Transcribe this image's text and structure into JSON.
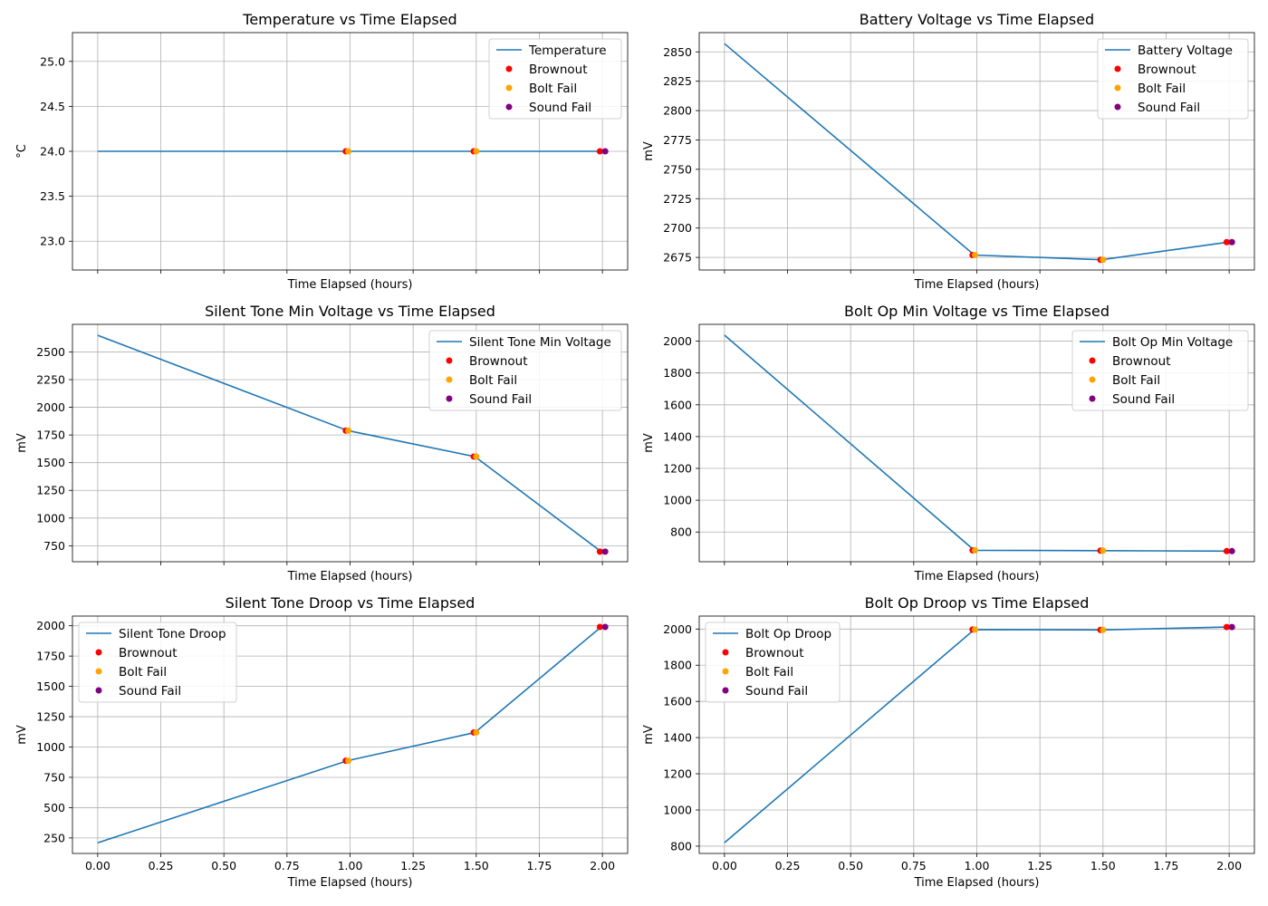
{
  "colors": {
    "line": "#1f77b4",
    "grid": "#b0b0b0",
    "brownout": "#ff0000",
    "bolt_fail": "#ffa500",
    "sound_fail": "#800080"
  },
  "chart_data": [
    {
      "type": "line",
      "title": "Temperature vs Time Elapsed",
      "xlabel": "Time Elapsed (hours)",
      "ylabel": "°C",
      "xlim": [
        -0.1,
        2.1
      ],
      "ylim": [
        22.68,
        25.32
      ],
      "xticks": [
        0,
        0.25,
        0.5,
        0.75,
        1,
        1.25,
        1.5,
        1.75,
        2
      ],
      "xtick_labels": [],
      "yticks": [
        23.0,
        23.5,
        24.0,
        24.5,
        25.0
      ],
      "ytick_labels": [
        "23.0",
        "23.5",
        "24.0",
        "24.5",
        "25.0"
      ],
      "grid": true,
      "legend_position": "upper right",
      "series": [
        {
          "name": "Temperature",
          "x": [
            0,
            0.99,
            1.495,
            1.995
          ],
          "y": [
            24.0,
            24.0,
            24.0,
            24.0
          ]
        }
      ],
      "events": [
        {
          "name": "Brownout",
          "x": [
            0.983,
            1.49,
            1.99
          ],
          "y": [
            24.0,
            24.0,
            24.0
          ]
        },
        {
          "name": "Bolt Fail",
          "x": [
            0.993,
            1.5
          ],
          "y": [
            24.0,
            24.0
          ]
        },
        {
          "name": "Sound Fail",
          "x": [
            2.011
          ],
          "y": [
            24.0
          ]
        }
      ]
    },
    {
      "type": "line",
      "title": "Battery Voltage vs Time Elapsed",
      "xlabel": "Time Elapsed (hours)",
      "ylabel": "mV",
      "xlim": [
        -0.1,
        2.1
      ],
      "ylim": [
        2664.3,
        2866.4
      ],
      "xticks": [
        0,
        0.25,
        0.5,
        0.75,
        1,
        1.25,
        1.5,
        1.75,
        2
      ],
      "xtick_labels": [],
      "yticks": [
        2675,
        2700,
        2725,
        2750,
        2775,
        2800,
        2825,
        2850
      ],
      "ytick_labels": [
        "2675",
        "2700",
        "2725",
        "2750",
        "2775",
        "2800",
        "2825",
        "2850"
      ],
      "grid": true,
      "legend_position": "upper right",
      "series": [
        {
          "name": "Battery Voltage",
          "x": [
            0,
            0.99,
            1.495,
            1.995
          ],
          "y": [
            2857,
            2677,
            2673,
            2688
          ]
        }
      ],
      "events": [
        {
          "name": "Brownout",
          "x": [
            0.983,
            1.49,
            1.99
          ],
          "y": [
            2677,
            2673,
            2688
          ]
        },
        {
          "name": "Bolt Fail",
          "x": [
            0.993,
            1.5
          ],
          "y": [
            2677,
            2673
          ]
        },
        {
          "name": "Sound Fail",
          "x": [
            2.011
          ],
          "y": [
            2688
          ]
        }
      ]
    },
    {
      "type": "line",
      "title": "Silent Tone Min Voltage vs Time Elapsed",
      "xlabel": "Time Elapsed (hours)",
      "ylabel": "mV",
      "xlim": [
        -0.1,
        2.1
      ],
      "ylim": [
        605.7,
        2749.1
      ],
      "xticks": [
        0,
        0.25,
        0.5,
        0.75,
        1,
        1.25,
        1.5,
        1.75,
        2
      ],
      "xtick_labels": [],
      "yticks": [
        750,
        1000,
        1250,
        1500,
        1750,
        2000,
        2250,
        2500
      ],
      "ytick_labels": [
        "750",
        "1000",
        "1250",
        "1500",
        "1750",
        "2000",
        "2250",
        "2500"
      ],
      "grid": true,
      "legend_position": "upper right",
      "series": [
        {
          "name": "Silent Tone Min Voltage",
          "x": [
            0,
            0.99,
            1.495,
            1.995
          ],
          "y": [
            2650,
            1790,
            1555,
            697
          ]
        }
      ],
      "events": [
        {
          "name": "Brownout",
          "x": [
            0.983,
            1.49,
            1.99
          ],
          "y": [
            1790,
            1555,
            697
          ]
        },
        {
          "name": "Bolt Fail",
          "x": [
            0.993,
            1.5
          ],
          "y": [
            1790,
            1555
          ]
        },
        {
          "name": "Sound Fail",
          "x": [
            2.011
          ],
          "y": [
            697
          ]
        }
      ]
    },
    {
      "type": "line",
      "title": "Bolt Op Min Voltage vs Time Elapsed",
      "xlabel": "Time Elapsed (hours)",
      "ylabel": "mV",
      "xlim": [
        -0.1,
        2.1
      ],
      "ylim": [
        613.3,
        2105.8
      ],
      "xticks": [
        0,
        0.25,
        0.5,
        0.75,
        1,
        1.25,
        1.5,
        1.75,
        2
      ],
      "xtick_labels": [],
      "yticks": [
        800,
        1000,
        1200,
        1400,
        1600,
        1800,
        2000
      ],
      "ytick_labels": [
        "800",
        "1000",
        "1200",
        "1400",
        "1600",
        "1800",
        "2000"
      ],
      "grid": true,
      "legend_position": "upper right",
      "series": [
        {
          "name": "Bolt Op Min Voltage",
          "x": [
            0,
            0.99,
            1.495,
            1.995
          ],
          "y": [
            2038,
            685,
            683,
            680
          ]
        }
      ],
      "events": [
        {
          "name": "Brownout",
          "x": [
            0.983,
            1.49,
            1.99
          ],
          "y": [
            685,
            683,
            680
          ]
        },
        {
          "name": "Bolt Fail",
          "x": [
            0.993,
            1.5
          ],
          "y": [
            685,
            683
          ]
        },
        {
          "name": "Sound Fail",
          "x": [
            2.011
          ],
          "y": [
            680
          ]
        }
      ]
    },
    {
      "type": "line",
      "title": "Silent Tone Droop vs Time Elapsed",
      "xlabel": "Time Elapsed (hours)",
      "ylabel": "mV",
      "xlim": [
        -0.1,
        2.1
      ],
      "ylim": [
        122.1,
        2079.8
      ],
      "xticks": [
        0,
        0.25,
        0.5,
        0.75,
        1,
        1.25,
        1.5,
        1.75,
        2
      ],
      "xtick_labels": [
        "0.00",
        "0.25",
        "0.50",
        "0.75",
        "1.00",
        "1.25",
        "1.50",
        "1.75",
        "2.00"
      ],
      "yticks": [
        250,
        500,
        750,
        1000,
        1250,
        1500,
        1750,
        2000
      ],
      "ytick_labels": [
        "250",
        "500",
        "750",
        "1000",
        "1250",
        "1500",
        "1750",
        "2000"
      ],
      "grid": true,
      "legend_position": "upper left",
      "series": [
        {
          "name": "Silent Tone Droop",
          "x": [
            0,
            0.99,
            1.495,
            1.995
          ],
          "y": [
            210,
            887,
            1120,
            1990
          ]
        }
      ],
      "events": [
        {
          "name": "Brownout",
          "x": [
            0.983,
            1.49,
            1.99
          ],
          "y": [
            887,
            1120,
            1990
          ]
        },
        {
          "name": "Bolt Fail",
          "x": [
            0.993,
            1.5
          ],
          "y": [
            887,
            1120
          ]
        },
        {
          "name": "Sound Fail",
          "x": [
            2.011
          ],
          "y": [
            1990
          ]
        }
      ]
    },
    {
      "type": "line",
      "title": "Bolt Op Droop vs Time Elapsed",
      "xlabel": "Time Elapsed (hours)",
      "ylabel": "mV",
      "xlim": [
        -0.1,
        2.1
      ],
      "ylim": [
        759.6,
        2071.6
      ],
      "xticks": [
        0,
        0.25,
        0.5,
        0.75,
        1,
        1.25,
        1.5,
        1.75,
        2
      ],
      "xtick_labels": [
        "0.00",
        "0.25",
        "0.50",
        "0.75",
        "1.00",
        "1.25",
        "1.50",
        "1.75",
        "2.00"
      ],
      "yticks": [
        800,
        1000,
        1200,
        1400,
        1600,
        1800,
        2000
      ],
      "ytick_labels": [
        "800",
        "1000",
        "1200",
        "1400",
        "1600",
        "1800",
        "2000"
      ],
      "grid": true,
      "legend_position": "upper left",
      "series": [
        {
          "name": "Bolt Op Droop",
          "x": [
            0,
            0.99,
            1.495,
            1.995
          ],
          "y": [
            819,
            1997,
            1995,
            2011
          ]
        }
      ],
      "events": [
        {
          "name": "Brownout",
          "x": [
            0.983,
            1.49,
            1.99
          ],
          "y": [
            1997,
            1995,
            2011
          ]
        },
        {
          "name": "Bolt Fail",
          "x": [
            0.993,
            1.5
          ],
          "y": [
            1997,
            1995
          ]
        },
        {
          "name": "Sound Fail",
          "x": [
            2.011
          ],
          "y": [
            2011
          ]
        }
      ]
    }
  ]
}
